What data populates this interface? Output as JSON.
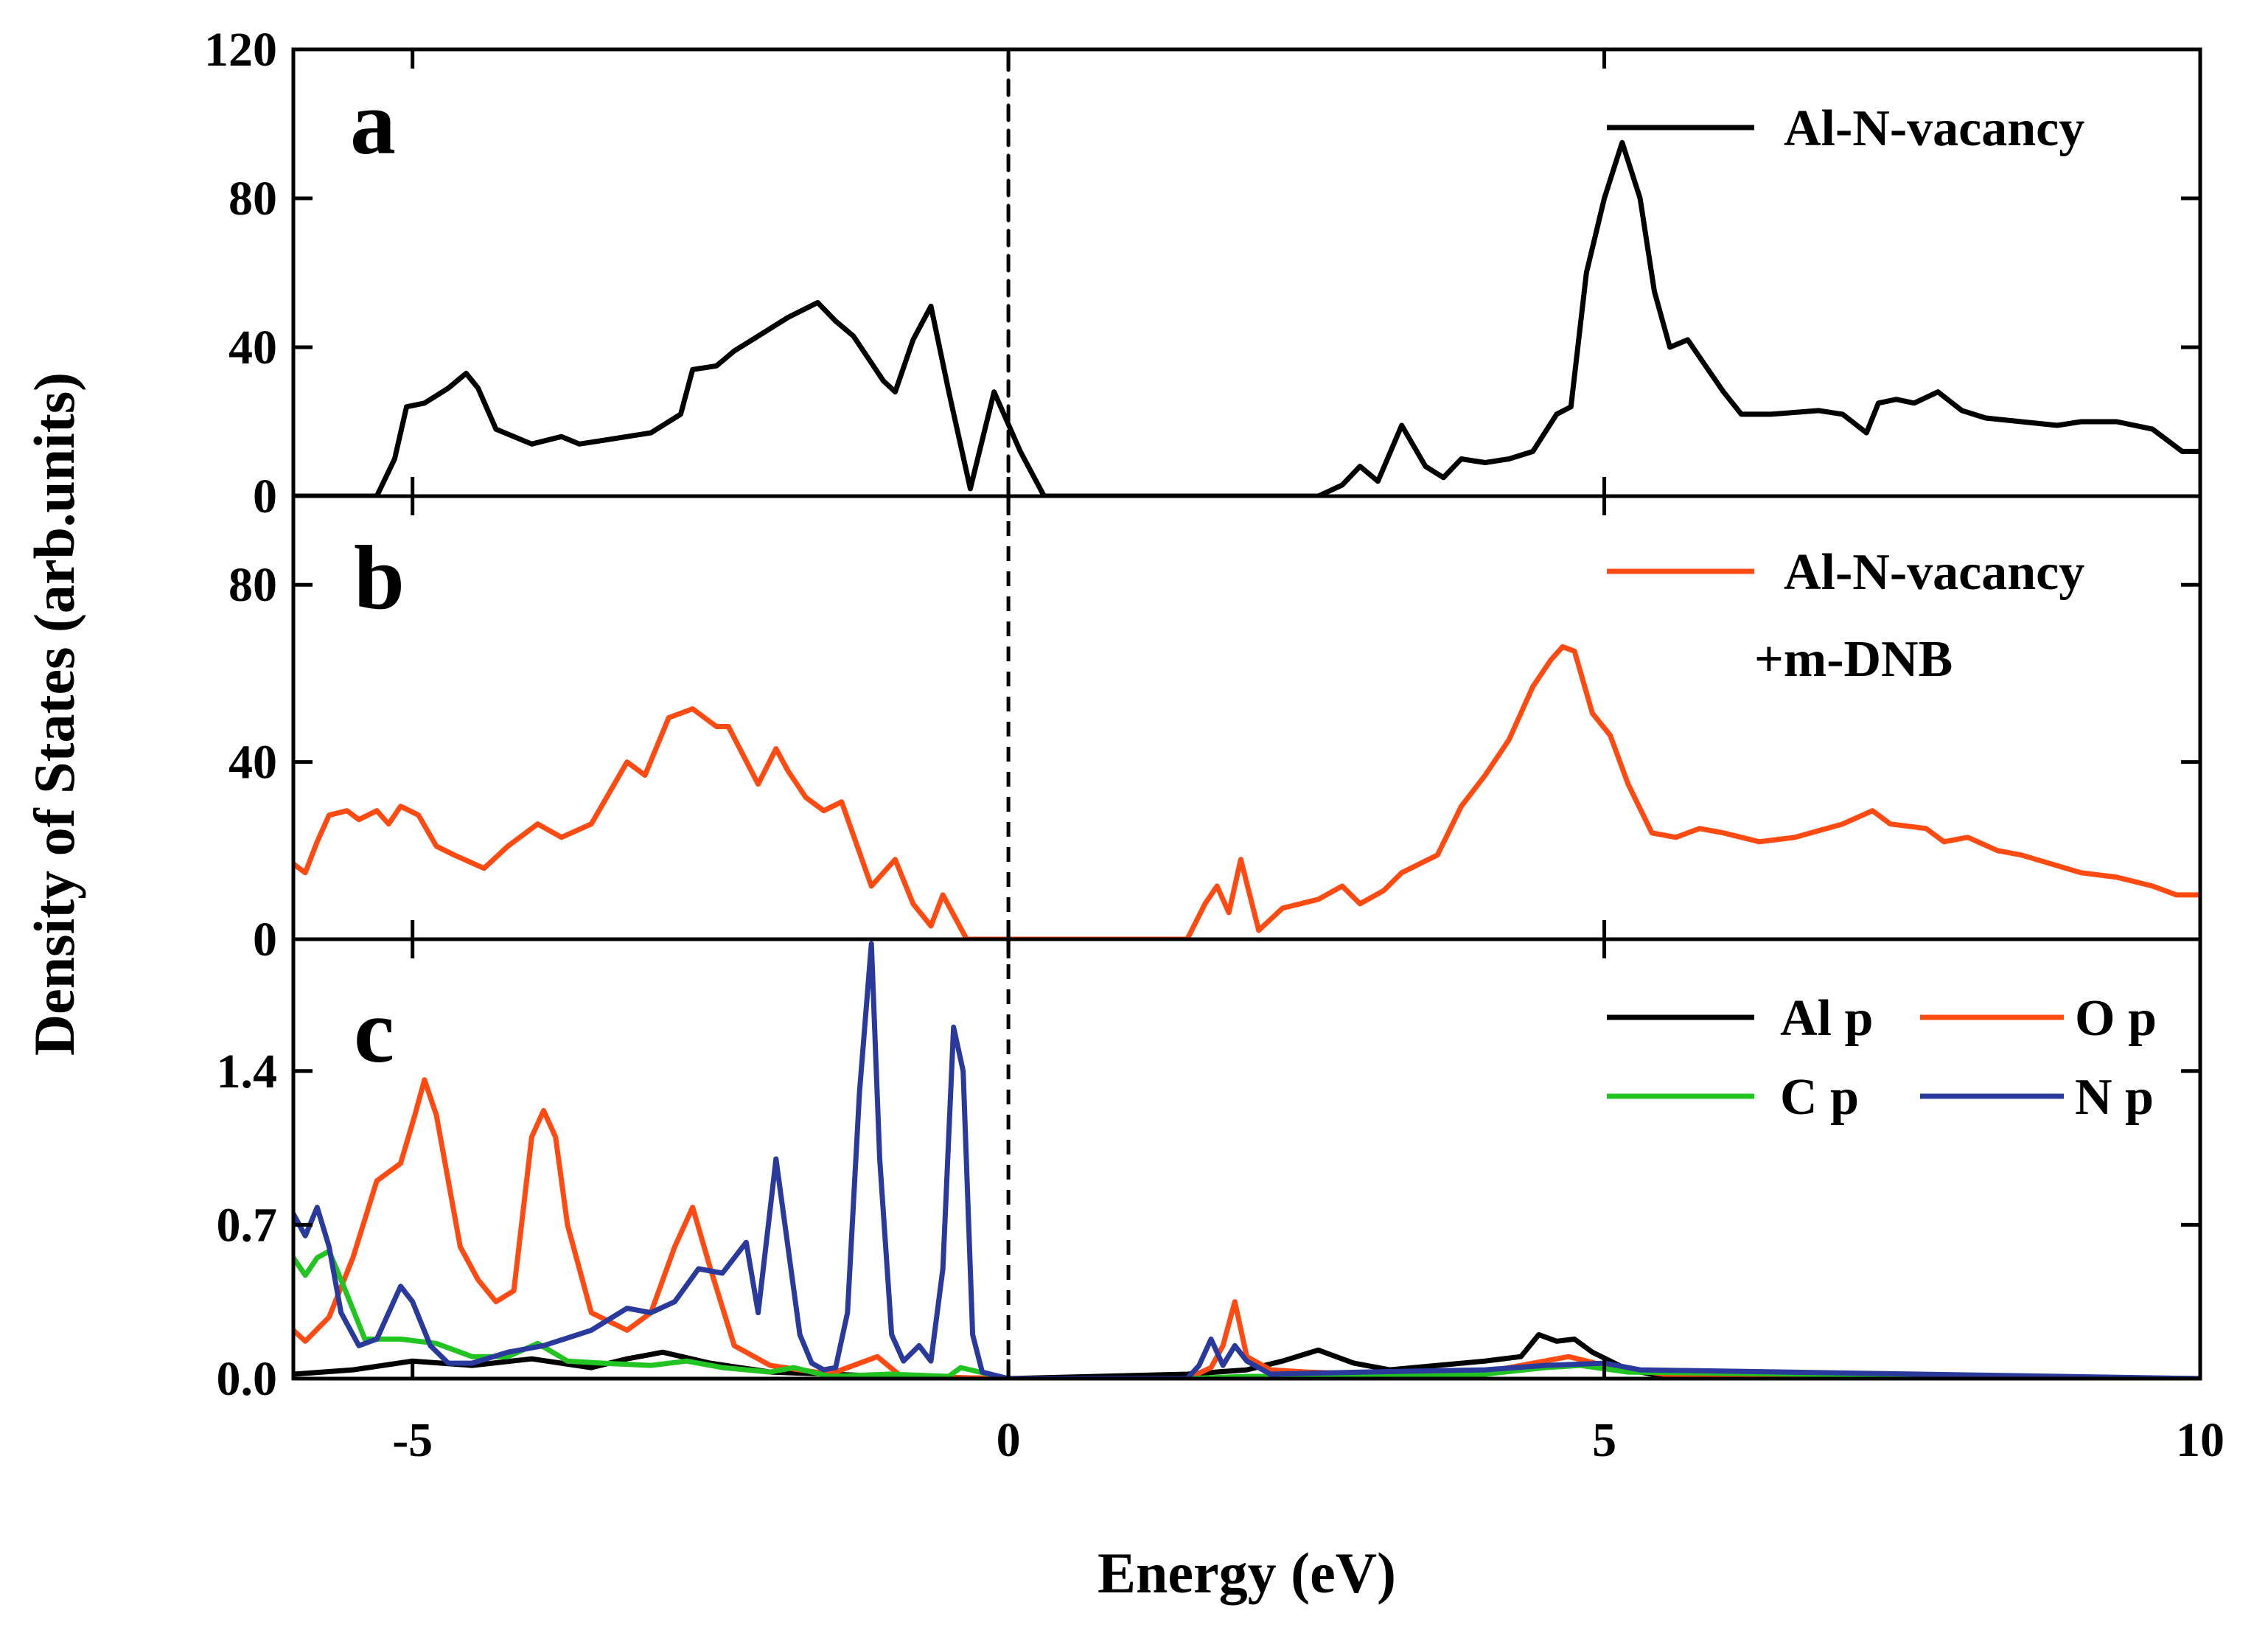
{
  "chart_data": {
    "type": "line",
    "xlabel": "Energy (eV)",
    "ylabel": "Density of States (arb.units)",
    "xlim": [
      -6,
      10
    ],
    "xticks": [
      -5,
      0,
      5,
      10
    ],
    "xtick_labels": [
      "-5",
      "0",
      "5",
      "10"
    ],
    "fermi_level": 0,
    "colors": {
      "black": "#000000",
      "orange": "#ff4a12",
      "green": "#22c422",
      "blue": "#2a3a9c"
    },
    "panels": [
      {
        "label": "a",
        "ylim": [
          0,
          120
        ],
        "yticks": [
          0,
          40,
          80,
          120
        ],
        "ytick_labels": [
          "0",
          "40",
          "80",
          "120"
        ],
        "legend": [
          {
            "text": "Al-N-vacancy",
            "color": "#000000"
          }
        ],
        "series": [
          {
            "name": "Al-N-vacancy",
            "color": "#000000",
            "x": [
              -6.0,
              -5.3,
              -5.15,
              -5.05,
              -4.9,
              -4.7,
              -4.55,
              -4.45,
              -4.3,
              -4.0,
              -3.75,
              -3.6,
              -3.4,
              -3.0,
              -2.75,
              -2.65,
              -2.45,
              -2.3,
              -2.1,
              -1.85,
              -1.6,
              -1.45,
              -1.3,
              -1.05,
              -0.95,
              -0.8,
              -0.65,
              -0.5,
              -0.32,
              -0.12,
              0.1,
              0.3,
              0.5,
              2.6,
              2.8,
              2.95,
              3.1,
              3.3,
              3.5,
              3.65,
              3.8,
              4.0,
              4.2,
              4.4,
              4.6,
              4.72,
              4.85,
              5.0,
              5.15,
              5.3,
              5.42,
              5.55,
              5.7,
              5.85,
              6.0,
              6.15,
              6.4,
              6.8,
              7.0,
              7.2,
              7.3,
              7.45,
              7.6,
              7.8,
              8.0,
              8.2,
              8.5,
              8.8,
              9.0,
              9.3,
              9.6,
              9.85,
              10.0
            ],
            "y": [
              0,
              0,
              10,
              24,
              25,
              29,
              33,
              29,
              18,
              14,
              16,
              14,
              15,
              17,
              22,
              34,
              35,
              39,
              43,
              48,
              52,
              47,
              43,
              31,
              28,
              42,
              51,
              28,
              2,
              28,
              12,
              0,
              0,
              0,
              3,
              8,
              4,
              19,
              8,
              5,
              10,
              9,
              10,
              12,
              22,
              24,
              60,
              80,
              95,
              80,
              55,
              40,
              42,
              35,
              28,
              22,
              22,
              23,
              22,
              17,
              25,
              26,
              25,
              28,
              23,
              21,
              20,
              19,
              20,
              20,
              18,
              12,
              12
            ]
          },
          {
            "name": "Fermi level",
            "color": "#000000",
            "x": [
              0,
              0
            ],
            "y": [
              0,
              120
            ]
          }
        ]
      },
      {
        "label": "b",
        "ylim": [
          0,
          100
        ],
        "yticks": [
          0,
          40,
          80
        ],
        "ytick_labels": [
          "0",
          "40",
          "80"
        ],
        "legend": [
          {
            "text": "Al-N-vacancy",
            "color": "#ff4a12"
          },
          {
            "text": "+m-DNB",
            "color": null
          }
        ],
        "series": [
          {
            "name": "Al-N-vacancy +m-DNB",
            "color": "#ff4a12",
            "x": [
              -6.0,
              -5.9,
              -5.8,
              -5.7,
              -5.55,
              -5.45,
              -5.3,
              -5.2,
              -5.1,
              -4.95,
              -4.8,
              -4.65,
              -4.4,
              -4.2,
              -3.95,
              -3.75,
              -3.5,
              -3.2,
              -3.05,
              -2.85,
              -2.65,
              -2.45,
              -2.35,
              -2.1,
              -1.95,
              -1.85,
              -1.7,
              -1.55,
              -1.4,
              -1.15,
              -0.95,
              -0.8,
              -0.65,
              -0.55,
              -0.45,
              -0.35,
              -0.25,
              1.5,
              1.65,
              1.75,
              1.85,
              1.95,
              2.1,
              2.3,
              2.6,
              2.8,
              2.95,
              3.15,
              3.3,
              3.6,
              3.8,
              4.0,
              4.2,
              4.4,
              4.55,
              4.65,
              4.75,
              4.9,
              5.05,
              5.2,
              5.4,
              5.6,
              5.8,
              6.0,
              6.3,
              6.6,
              7.0,
              7.25,
              7.4,
              7.7,
              7.85,
              8.05,
              8.3,
              8.5,
              8.75,
              9.0,
              9.3,
              9.6,
              9.8,
              10.0
            ],
            "y": [
              17,
              15,
              22,
              28,
              29,
              27,
              29,
              26,
              30,
              28,
              21,
              19,
              16,
              21,
              26,
              23,
              26,
              40,
              37,
              50,
              52,
              48,
              48,
              35,
              43,
              38,
              32,
              29,
              31,
              12,
              18,
              8,
              3,
              10,
              5,
              0,
              0,
              0,
              8,
              12,
              6,
              18,
              2,
              7,
              9,
              12,
              8,
              11,
              15,
              19,
              30,
              37,
              45,
              57,
              63,
              66,
              65,
              51,
              46,
              35,
              24,
              23,
              25,
              24,
              22,
              23,
              26,
              29,
              26,
              25,
              22,
              23,
              20,
              19,
              17,
              15,
              14,
              12,
              10,
              10
            ]
          }
        ]
      },
      {
        "label": "c",
        "ylim": [
          0,
          2.0
        ],
        "yticks": [
          0.0,
          0.7,
          1.4
        ],
        "ytick_labels": [
          "0.0",
          "0.7",
          "1.4"
        ],
        "legend": [
          {
            "text": "Al p",
            "color": "#000000"
          },
          {
            "text": "O p",
            "color": "#ff4a12"
          },
          {
            "text": "C p",
            "color": "#22c422"
          },
          {
            "text": "N p",
            "color": "#2a3a9c"
          }
        ],
        "series": [
          {
            "name": "Al p",
            "color": "#000000",
            "x": [
              -6.0,
              -5.5,
              -5.0,
              -4.5,
              -4.0,
              -3.5,
              -3.2,
              -2.9,
              -2.5,
              -2.0,
              -1.0,
              0.0,
              1.5,
              2.0,
              2.3,
              2.6,
              2.9,
              3.2,
              3.6,
              4.0,
              4.3,
              4.45,
              4.6,
              4.75,
              4.9,
              5.2,
              5.5,
              10.0
            ],
            "y": [
              0.02,
              0.04,
              0.08,
              0.06,
              0.09,
              0.05,
              0.09,
              0.12,
              0.07,
              0.03,
              0.01,
              0.0,
              0.02,
              0.04,
              0.08,
              0.13,
              0.07,
              0.04,
              0.06,
              0.08,
              0.1,
              0.2,
              0.17,
              0.18,
              0.12,
              0.04,
              0.01,
              0.0
            ]
          },
          {
            "name": "O p",
            "color": "#ff4a12",
            "x": [
              -6.0,
              -5.9,
              -5.7,
              -5.5,
              -5.3,
              -5.1,
              -4.98,
              -4.9,
              -4.8,
              -4.6,
              -4.45,
              -4.3,
              -4.15,
              -4.0,
              -3.9,
              -3.8,
              -3.7,
              -3.5,
              -3.2,
              -3.0,
              -2.8,
              -2.65,
              -2.5,
              -2.3,
              -2.0,
              -1.5,
              -1.1,
              -0.9,
              0.0,
              1.5,
              1.7,
              1.8,
              1.9,
              2.0,
              2.2,
              2.5,
              3.0,
              4.0,
              4.5,
              4.7,
              5.0,
              5.5,
              10.0
            ],
            "y": [
              0.22,
              0.17,
              0.28,
              0.55,
              0.9,
              0.98,
              1.2,
              1.36,
              1.2,
              0.6,
              0.45,
              0.35,
              0.4,
              1.1,
              1.22,
              1.1,
              0.7,
              0.3,
              0.22,
              0.3,
              0.6,
              0.78,
              0.5,
              0.15,
              0.06,
              0.02,
              0.1,
              0.01,
              0.0,
              0.0,
              0.05,
              0.15,
              0.35,
              0.1,
              0.04,
              0.03,
              0.02,
              0.03,
              0.08,
              0.1,
              0.06,
              0.02,
              0.0
            ]
          },
          {
            "name": "C p",
            "color": "#22c422",
            "x": [
              -6.0,
              -5.9,
              -5.8,
              -5.7,
              -5.6,
              -5.4,
              -5.1,
              -4.8,
              -4.5,
              -4.2,
              -3.95,
              -3.7,
              -3.4,
              -3.0,
              -2.7,
              -2.4,
              -2.0,
              -1.8,
              -1.5,
              -1.0,
              -0.5,
              -0.4,
              0.0,
              1.5,
              2.0,
              3.0,
              4.0,
              4.5,
              4.8,
              5.2,
              10.0
            ],
            "y": [
              0.55,
              0.47,
              0.55,
              0.58,
              0.45,
              0.18,
              0.18,
              0.16,
              0.1,
              0.1,
              0.16,
              0.08,
              0.07,
              0.06,
              0.08,
              0.05,
              0.03,
              0.05,
              0.01,
              0.02,
              0.01,
              0.05,
              0.0,
              0.0,
              0.01,
              0.01,
              0.02,
              0.05,
              0.06,
              0.03,
              0.0
            ]
          },
          {
            "name": "N p",
            "color": "#2a3a9c",
            "x": [
              -6.0,
              -5.9,
              -5.8,
              -5.7,
              -5.6,
              -5.45,
              -5.3,
              -5.1,
              -5.0,
              -4.85,
              -4.7,
              -4.5,
              -4.2,
              -3.9,
              -3.5,
              -3.2,
              -3.0,
              -2.8,
              -2.6,
              -2.4,
              -2.2,
              -2.1,
              -1.95,
              -1.85,
              -1.75,
              -1.65,
              -1.55,
              -1.45,
              -1.35,
              -1.25,
              -1.15,
              -1.08,
              -0.98,
              -0.88,
              -0.75,
              -0.65,
              -0.55,
              -0.46,
              -0.38,
              -0.3,
              -0.22,
              0.0,
              1.5,
              1.6,
              1.7,
              1.8,
              1.9,
              2.0,
              2.2,
              3.0,
              4.0,
              4.5,
              5.0,
              5.3,
              10.0
            ],
            "y": [
              0.75,
              0.65,
              0.78,
              0.6,
              0.3,
              0.15,
              0.18,
              0.42,
              0.35,
              0.15,
              0.07,
              0.07,
              0.12,
              0.15,
              0.22,
              0.32,
              0.3,
              0.35,
              0.5,
              0.48,
              0.62,
              0.3,
              1.0,
              0.6,
              0.2,
              0.07,
              0.04,
              0.05,
              0.3,
              1.3,
              1.98,
              1.0,
              0.2,
              0.08,
              0.15,
              0.08,
              0.5,
              1.6,
              1.4,
              0.2,
              0.03,
              0.0,
              0.0,
              0.06,
              0.18,
              0.06,
              0.15,
              0.08,
              0.02,
              0.03,
              0.04,
              0.06,
              0.07,
              0.04,
              0.0
            ]
          }
        ]
      }
    ]
  }
}
